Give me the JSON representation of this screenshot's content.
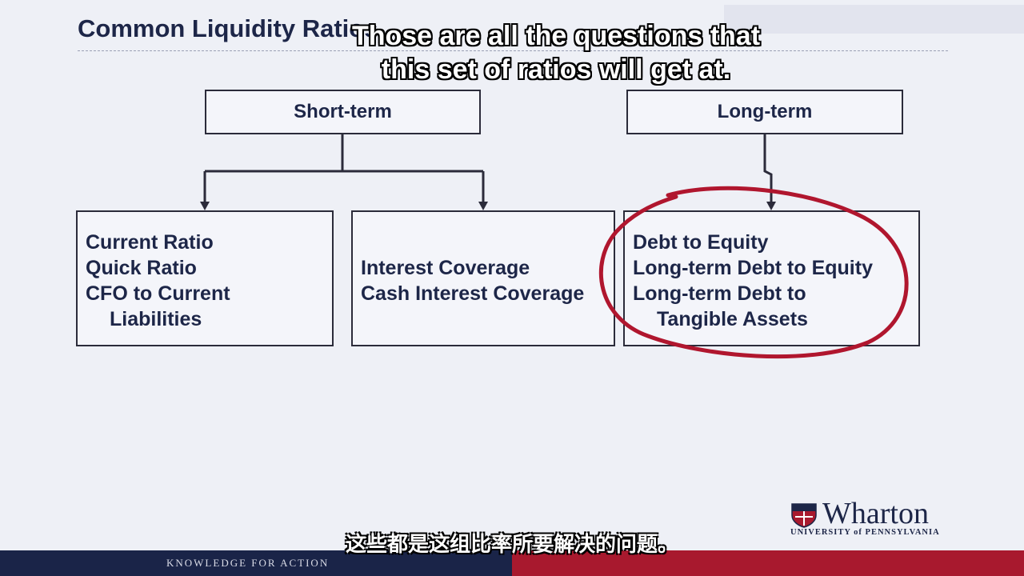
{
  "slide": {
    "title": "Common Liquidity Ratios"
  },
  "headers": {
    "short_term": "Short-term",
    "long_term": "Long-term"
  },
  "boxes": {
    "left": [
      "Current Ratio",
      "Quick Ratio",
      "CFO to Current",
      "Liabilities"
    ],
    "middle": [
      "Interest Coverage",
      "Cash Interest Coverage"
    ],
    "right": [
      "Debt to Equity",
      "Long-term Debt to Equity",
      "Long-term Debt to",
      "Tangible Assets"
    ]
  },
  "subtitles": {
    "en_line1": "Those are all the questions that",
    "en_line2": "this set of ratios will get at.",
    "zh": "这些都是这组比率所要解决的问题。"
  },
  "footer": {
    "tagline": "KNOWLEDGE FOR ACTION"
  },
  "logo": {
    "wordmark": "Wharton",
    "subtext": "UNIVERSITY of PENNSYLVANIA"
  },
  "colors": {
    "navy": "#1d2648",
    "footer_red": "#a8192e",
    "annotation_red": "#b0162e"
  }
}
